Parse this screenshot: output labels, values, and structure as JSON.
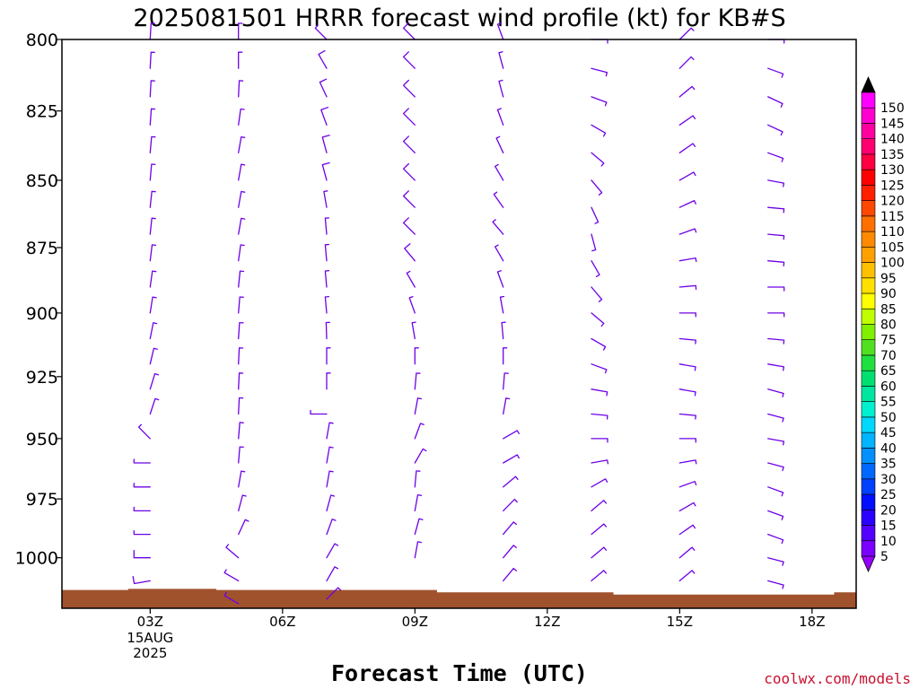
{
  "page": {
    "title": "2025081501 HRRR forecast wind profile (kt) for KB#S",
    "xlabel": "Forecast Time (UTC)",
    "credit": "coolwx.com/models"
  },
  "chart_data": {
    "type": "wind_profile",
    "title": "2025081501 HRRR forecast wind profile (kt) for KB#S",
    "xlabel": "Forecast Time (UTC)",
    "ylabel": "",
    "x_range_hours": [
      1.0,
      19.0
    ],
    "y_range_hpa": [
      800,
      1022
    ],
    "y_scale": "log-pressure (inverted)",
    "y_ticks": [
      800,
      825,
      850,
      875,
      900,
      925,
      950,
      975,
      1000
    ],
    "x_ticks": [
      {
        "hour": 3,
        "label": "03Z",
        "sub": [
          "15AUG",
          "2025"
        ]
      },
      {
        "hour": 6,
        "label": "06Z",
        "sub": []
      },
      {
        "hour": 9,
        "label": "09Z",
        "sub": []
      },
      {
        "hour": 12,
        "label": "12Z",
        "sub": []
      },
      {
        "hour": 15,
        "label": "15Z",
        "sub": []
      },
      {
        "hour": 18,
        "label": "18Z",
        "sub": []
      }
    ],
    "barb_color": "#6e00e6",
    "terrain_color": "#a0522d",
    "terrain_pressure": [
      [
        1.0,
        1014
      ],
      [
        2.5,
        1014
      ],
      [
        2.5,
        1013.5
      ],
      [
        4.5,
        1013.5
      ],
      [
        4.5,
        1014
      ],
      [
        9.5,
        1014
      ],
      [
        9.5,
        1015
      ],
      [
        13.5,
        1015
      ],
      [
        13.5,
        1016
      ],
      [
        18.5,
        1016
      ],
      [
        18.5,
        1015
      ],
      [
        19.0,
        1015
      ]
    ],
    "profiles": [
      {
        "hour": 3,
        "levels": [
          [
            800,
            3,
            5
          ],
          [
            810,
            3,
            5
          ],
          [
            820,
            3,
            5
          ],
          [
            830,
            4,
            5
          ],
          [
            840,
            5,
            5
          ],
          [
            850,
            5,
            5
          ],
          [
            860,
            6,
            5
          ],
          [
            870,
            6,
            5
          ],
          [
            880,
            7,
            5
          ],
          [
            890,
            8,
            5
          ],
          [
            900,
            9,
            5
          ],
          [
            910,
            11,
            5
          ],
          [
            920,
            13,
            5
          ],
          [
            930,
            17,
            5
          ],
          [
            940,
            18,
            5
          ],
          [
            950,
            315,
            5
          ],
          [
            960,
            270,
            5
          ],
          [
            970,
            270,
            5
          ],
          [
            980,
            270,
            5
          ],
          [
            990,
            270,
            5
          ],
          [
            1000,
            270,
            10
          ],
          [
            1010,
            260,
            10
          ]
        ]
      },
      {
        "hour": 5,
        "levels": [
          [
            800,
            0,
            5
          ],
          [
            810,
            0,
            5
          ],
          [
            820,
            3,
            5
          ],
          [
            830,
            8,
            5
          ],
          [
            840,
            10,
            5
          ],
          [
            850,
            10,
            5
          ],
          [
            860,
            10,
            5
          ],
          [
            870,
            10,
            5
          ],
          [
            880,
            8,
            5
          ],
          [
            890,
            6,
            5
          ],
          [
            900,
            5,
            5
          ],
          [
            910,
            4,
            5
          ],
          [
            920,
            3,
            5
          ],
          [
            930,
            3,
            5
          ],
          [
            940,
            3,
            5
          ],
          [
            950,
            5,
            5
          ],
          [
            960,
            5,
            5
          ],
          [
            970,
            10,
            5
          ],
          [
            980,
            15,
            5
          ],
          [
            990,
            25,
            5
          ],
          [
            1000,
            310,
            5
          ],
          [
            1010,
            300,
            5
          ],
          [
            1020,
            300,
            5
          ]
        ]
      },
      {
        "hour": 7,
        "levels": [
          [
            800,
            315,
            5
          ],
          [
            810,
            330,
            10
          ],
          [
            820,
            335,
            10
          ],
          [
            830,
            340,
            10
          ],
          [
            840,
            345,
            10
          ],
          [
            850,
            345,
            10
          ],
          [
            860,
            350,
            5
          ],
          [
            870,
            355,
            5
          ],
          [
            880,
            355,
            5
          ],
          [
            890,
            355,
            5
          ],
          [
            900,
            355,
            5
          ],
          [
            910,
            358,
            5
          ],
          [
            920,
            0,
            5
          ],
          [
            930,
            0,
            5
          ],
          [
            940,
            270,
            5
          ],
          [
            950,
            10,
            5
          ],
          [
            960,
            10,
            5
          ],
          [
            970,
            10,
            5
          ],
          [
            980,
            15,
            5
          ],
          [
            990,
            20,
            5
          ],
          [
            1000,
            30,
            5
          ],
          [
            1010,
            30,
            5
          ],
          [
            1018,
            45,
            5
          ]
        ]
      },
      {
        "hour": 9,
        "levels": [
          [
            800,
            315,
            10
          ],
          [
            810,
            315,
            10
          ],
          [
            820,
            315,
            10
          ],
          [
            830,
            315,
            10
          ],
          [
            840,
            315,
            10
          ],
          [
            850,
            315,
            10
          ],
          [
            860,
            315,
            10
          ],
          [
            870,
            315,
            10
          ],
          [
            880,
            320,
            10
          ],
          [
            890,
            330,
            5
          ],
          [
            900,
            340,
            5
          ],
          [
            910,
            350,
            5
          ],
          [
            920,
            0,
            5
          ],
          [
            930,
            5,
            5
          ],
          [
            940,
            10,
            5
          ],
          [
            950,
            20,
            5
          ],
          [
            960,
            30,
            5
          ],
          [
            970,
            5,
            5
          ],
          [
            980,
            10,
            5
          ],
          [
            990,
            15,
            5
          ],
          [
            1000,
            10,
            5
          ]
        ]
      },
      {
        "hour": 11,
        "levels": [
          [
            800,
            340,
            5
          ],
          [
            810,
            345,
            5
          ],
          [
            820,
            345,
            5
          ],
          [
            830,
            340,
            5
          ],
          [
            840,
            335,
            5
          ],
          [
            850,
            330,
            5
          ],
          [
            860,
            325,
            5
          ],
          [
            870,
            320,
            5
          ],
          [
            880,
            330,
            5
          ],
          [
            890,
            340,
            5
          ],
          [
            900,
            350,
            5
          ],
          [
            910,
            355,
            5
          ],
          [
            920,
            0,
            5
          ],
          [
            930,
            5,
            5
          ],
          [
            940,
            10,
            5
          ],
          [
            950,
            60,
            5
          ],
          [
            960,
            60,
            5
          ],
          [
            970,
            50,
            5
          ],
          [
            980,
            45,
            5
          ],
          [
            990,
            40,
            5
          ],
          [
            1000,
            40,
            5
          ],
          [
            1010,
            40,
            5
          ]
        ]
      },
      {
        "hour": 13,
        "levels": [
          [
            800,
            90,
            5
          ],
          [
            810,
            105,
            5
          ],
          [
            820,
            110,
            5
          ],
          [
            830,
            120,
            5
          ],
          [
            840,
            130,
            5
          ],
          [
            850,
            140,
            5
          ],
          [
            860,
            155,
            5
          ],
          [
            870,
            165,
            5
          ],
          [
            880,
            150,
            5
          ],
          [
            890,
            140,
            5
          ],
          [
            900,
            130,
            5
          ],
          [
            910,
            120,
            5
          ],
          [
            920,
            110,
            5
          ],
          [
            930,
            100,
            5
          ],
          [
            940,
            95,
            5
          ],
          [
            950,
            90,
            5
          ],
          [
            960,
            80,
            5
          ],
          [
            970,
            60,
            5
          ],
          [
            980,
            50,
            5
          ],
          [
            990,
            50,
            5
          ],
          [
            1000,
            50,
            5
          ],
          [
            1010,
            50,
            5
          ]
        ]
      },
      {
        "hour": 15,
        "levels": [
          [
            800,
            45,
            5
          ],
          [
            810,
            45,
            5
          ],
          [
            820,
            50,
            5
          ],
          [
            830,
            55,
            5
          ],
          [
            840,
            55,
            5
          ],
          [
            850,
            60,
            5
          ],
          [
            860,
            65,
            5
          ],
          [
            870,
            70,
            5
          ],
          [
            880,
            80,
            5
          ],
          [
            890,
            85,
            5
          ],
          [
            900,
            90,
            5
          ],
          [
            910,
            95,
            5
          ],
          [
            920,
            100,
            5
          ],
          [
            930,
            100,
            5
          ],
          [
            940,
            95,
            5
          ],
          [
            950,
            90,
            5
          ],
          [
            960,
            80,
            5
          ],
          [
            970,
            70,
            5
          ],
          [
            980,
            60,
            5
          ],
          [
            990,
            55,
            5
          ],
          [
            1000,
            50,
            5
          ],
          [
            1010,
            50,
            5
          ]
        ]
      },
      {
        "hour": 17,
        "levels": [
          [
            800,
            90,
            5
          ],
          [
            810,
            110,
            5
          ],
          [
            820,
            115,
            5
          ],
          [
            830,
            115,
            5
          ],
          [
            840,
            110,
            5
          ],
          [
            850,
            100,
            5
          ],
          [
            860,
            95,
            5
          ],
          [
            870,
            95,
            5
          ],
          [
            880,
            95,
            5
          ],
          [
            890,
            90,
            5
          ],
          [
            900,
            90,
            5
          ],
          [
            910,
            95,
            5
          ],
          [
            920,
            100,
            5
          ],
          [
            930,
            105,
            5
          ],
          [
            940,
            105,
            5
          ],
          [
            950,
            100,
            5
          ],
          [
            960,
            105,
            5
          ],
          [
            970,
            110,
            5
          ],
          [
            980,
            110,
            5
          ],
          [
            990,
            110,
            5
          ],
          [
            1000,
            105,
            5
          ],
          [
            1010,
            105,
            5
          ]
        ]
      }
    ],
    "colorbar": {
      "labels": [
        5,
        10,
        15,
        20,
        25,
        30,
        35,
        40,
        45,
        50,
        55,
        60,
        65,
        70,
        75,
        80,
        85,
        90,
        95,
        100,
        105,
        110,
        115,
        120,
        125,
        130,
        135,
        140,
        145,
        150
      ],
      "colors": [
        "#7c00ff",
        "#5500ff",
        "#2a00ff",
        "#0010ff",
        "#0040ff",
        "#0068ff",
        "#0090ff",
        "#00b4ff",
        "#00d8ff",
        "#00f0d0",
        "#00e6a0",
        "#00e070",
        "#20e040",
        "#50e020",
        "#80f000",
        "#c0ff00",
        "#ffff00",
        "#ffe000",
        "#ffc000",
        "#ffa000",
        "#ff8a00",
        "#ff7000",
        "#ff4800",
        "#ff2000",
        "#ff0000",
        "#ff0040",
        "#ff0070",
        "#ff00a0",
        "#ff00d0",
        "#ff00ff"
      ],
      "low_cap_color": "#9400ff",
      "high_cap_color": "#000000"
    }
  }
}
